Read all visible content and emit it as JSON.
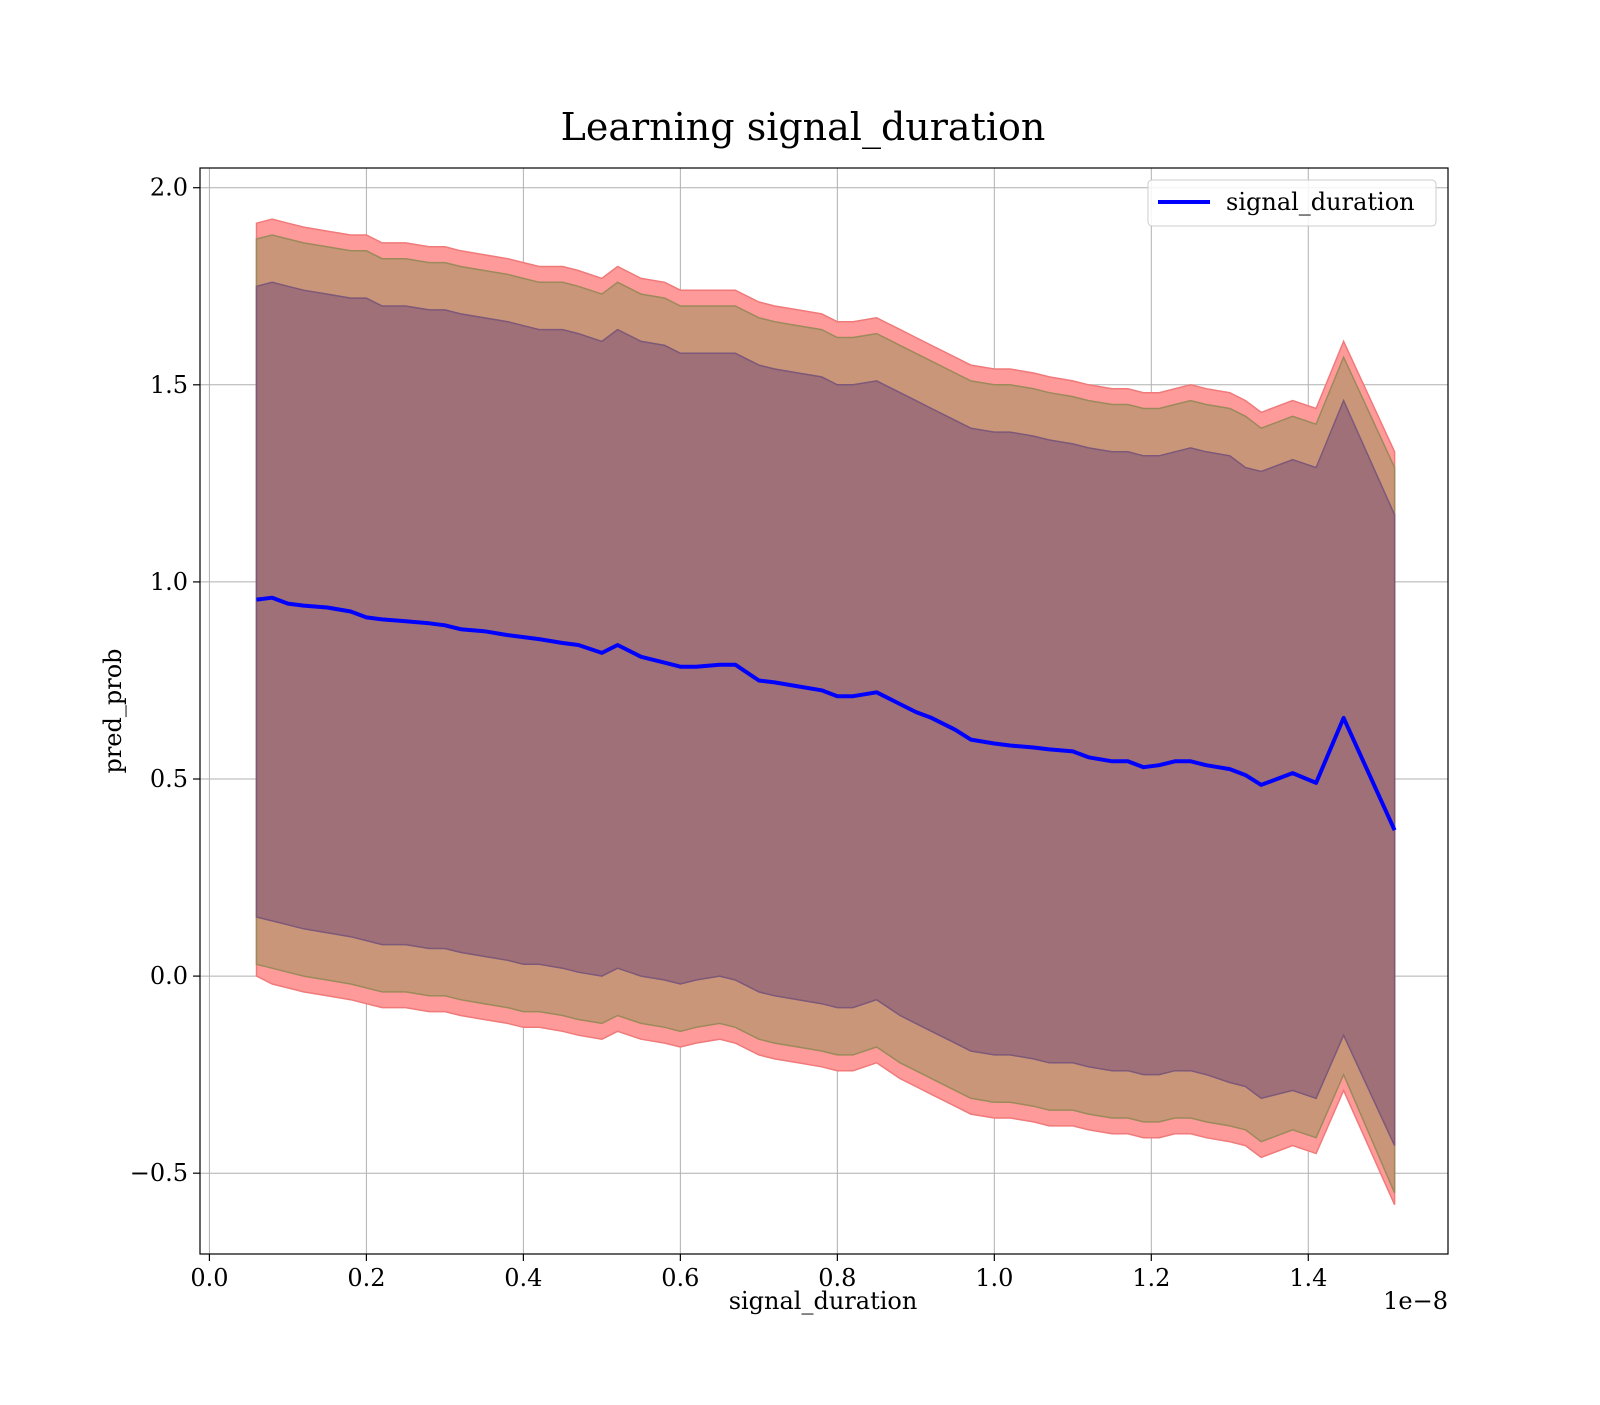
{
  "chart_data": {
    "type": "line",
    "title": "Learning signal_duration",
    "xlabel": "signal_duration",
    "ylabel": "pred_prob",
    "x_offset_label": "1e−8",
    "xlim": [
      -0.012,
      1.578
    ],
    "ylim": [
      -0.705,
      2.05
    ],
    "x_ticks": [
      0.0,
      0.2,
      0.4,
      0.6,
      0.8,
      1.0,
      1.2,
      1.4
    ],
    "x_tick_labels": [
      "0.0",
      "0.2",
      "0.4",
      "0.6",
      "0.8",
      "1.0",
      "1.2",
      "1.4"
    ],
    "y_ticks": [
      -0.5,
      0.0,
      0.5,
      1.0,
      1.5,
      2.0
    ],
    "y_tick_labels": [
      "−0.5",
      "0.0",
      "0.5",
      "1.0",
      "1.5",
      "2.0"
    ],
    "grid": true,
    "legend_position": "upper right",
    "colors": {
      "line": "#0000ff",
      "outer_band": "#ff9a9a",
      "middle_band": "#c9967a",
      "inner_band": "#a07078"
    },
    "series": [
      {
        "name": "signal_duration",
        "x": [
          0.06,
          0.08,
          0.1,
          0.12,
          0.15,
          0.18,
          0.2,
          0.22,
          0.25,
          0.28,
          0.3,
          0.32,
          0.35,
          0.38,
          0.4,
          0.42,
          0.45,
          0.47,
          0.5,
          0.52,
          0.55,
          0.58,
          0.6,
          0.62,
          0.65,
          0.67,
          0.7,
          0.72,
          0.75,
          0.78,
          0.8,
          0.82,
          0.85,
          0.88,
          0.9,
          0.92,
          0.95,
          0.97,
          1.0,
          1.02,
          1.05,
          1.07,
          1.1,
          1.12,
          1.15,
          1.17,
          1.19,
          1.21,
          1.23,
          1.25,
          1.27,
          1.3,
          1.32,
          1.34,
          1.38,
          1.41,
          1.445,
          1.51
        ],
        "y": [
          0.955,
          0.96,
          0.945,
          0.94,
          0.935,
          0.925,
          0.91,
          0.905,
          0.9,
          0.895,
          0.89,
          0.88,
          0.875,
          0.865,
          0.86,
          0.855,
          0.845,
          0.84,
          0.82,
          0.84,
          0.81,
          0.795,
          0.785,
          0.785,
          0.79,
          0.79,
          0.75,
          0.745,
          0.735,
          0.725,
          0.71,
          0.71,
          0.72,
          0.69,
          0.67,
          0.655,
          0.625,
          0.6,
          0.59,
          0.585,
          0.58,
          0.575,
          0.57,
          0.555,
          0.545,
          0.545,
          0.53,
          0.535,
          0.545,
          0.545,
          0.535,
          0.525,
          0.51,
          0.485,
          0.515,
          0.49,
          0.655,
          0.37
        ]
      }
    ],
    "bands": [
      {
        "name": "outer",
        "lower": [
          0.0,
          -0.02,
          -0.03,
          -0.04,
          -0.05,
          -0.06,
          -0.07,
          -0.08,
          -0.08,
          -0.09,
          -0.09,
          -0.1,
          -0.11,
          -0.12,
          -0.13,
          -0.13,
          -0.14,
          -0.15,
          -0.16,
          -0.14,
          -0.16,
          -0.17,
          -0.18,
          -0.17,
          -0.16,
          -0.17,
          -0.2,
          -0.21,
          -0.22,
          -0.23,
          -0.24,
          -0.24,
          -0.22,
          -0.26,
          -0.28,
          -0.3,
          -0.33,
          -0.35,
          -0.36,
          -0.36,
          -0.37,
          -0.38,
          -0.38,
          -0.39,
          -0.4,
          -0.4,
          -0.41,
          -0.41,
          -0.4,
          -0.4,
          -0.41,
          -0.42,
          -0.43,
          -0.46,
          -0.43,
          -0.45,
          -0.29,
          -0.58
        ],
        "upper": [
          1.91,
          1.92,
          1.91,
          1.9,
          1.89,
          1.88,
          1.88,
          1.86,
          1.86,
          1.85,
          1.85,
          1.84,
          1.83,
          1.82,
          1.81,
          1.8,
          1.8,
          1.79,
          1.77,
          1.8,
          1.77,
          1.76,
          1.74,
          1.74,
          1.74,
          1.74,
          1.71,
          1.7,
          1.69,
          1.68,
          1.66,
          1.66,
          1.67,
          1.64,
          1.62,
          1.6,
          1.57,
          1.55,
          1.54,
          1.54,
          1.53,
          1.52,
          1.51,
          1.5,
          1.49,
          1.49,
          1.48,
          1.48,
          1.49,
          1.5,
          1.49,
          1.48,
          1.46,
          1.43,
          1.46,
          1.44,
          1.61,
          1.33
        ]
      },
      {
        "name": "middle",
        "lower": [
          0.03,
          0.02,
          0.01,
          0.0,
          -0.01,
          -0.02,
          -0.03,
          -0.04,
          -0.04,
          -0.05,
          -0.05,
          -0.06,
          -0.07,
          -0.08,
          -0.09,
          -0.09,
          -0.1,
          -0.11,
          -0.12,
          -0.1,
          -0.12,
          -0.13,
          -0.14,
          -0.13,
          -0.12,
          -0.13,
          -0.16,
          -0.17,
          -0.18,
          -0.19,
          -0.2,
          -0.2,
          -0.18,
          -0.22,
          -0.24,
          -0.26,
          -0.29,
          -0.31,
          -0.32,
          -0.32,
          -0.33,
          -0.34,
          -0.34,
          -0.35,
          -0.36,
          -0.36,
          -0.37,
          -0.37,
          -0.36,
          -0.36,
          -0.37,
          -0.38,
          -0.39,
          -0.42,
          -0.39,
          -0.41,
          -0.25,
          -0.55
        ],
        "upper": [
          1.87,
          1.88,
          1.87,
          1.86,
          1.85,
          1.84,
          1.84,
          1.82,
          1.82,
          1.81,
          1.81,
          1.8,
          1.79,
          1.78,
          1.77,
          1.76,
          1.76,
          1.75,
          1.73,
          1.76,
          1.73,
          1.72,
          1.7,
          1.7,
          1.7,
          1.7,
          1.67,
          1.66,
          1.65,
          1.64,
          1.62,
          1.62,
          1.63,
          1.6,
          1.58,
          1.56,
          1.53,
          1.51,
          1.5,
          1.5,
          1.49,
          1.48,
          1.47,
          1.46,
          1.45,
          1.45,
          1.44,
          1.44,
          1.45,
          1.46,
          1.45,
          1.44,
          1.42,
          1.39,
          1.42,
          1.4,
          1.57,
          1.29
        ]
      },
      {
        "name": "inner",
        "lower": [
          0.15,
          0.14,
          0.13,
          0.12,
          0.11,
          0.1,
          0.09,
          0.08,
          0.08,
          0.07,
          0.07,
          0.06,
          0.05,
          0.04,
          0.03,
          0.03,
          0.02,
          0.01,
          0.0,
          0.02,
          0.0,
          -0.01,
          -0.02,
          -0.01,
          0.0,
          -0.01,
          -0.04,
          -0.05,
          -0.06,
          -0.07,
          -0.08,
          -0.08,
          -0.06,
          -0.1,
          -0.12,
          -0.14,
          -0.17,
          -0.19,
          -0.2,
          -0.2,
          -0.21,
          -0.22,
          -0.22,
          -0.23,
          -0.24,
          -0.24,
          -0.25,
          -0.25,
          -0.24,
          -0.24,
          -0.25,
          -0.27,
          -0.28,
          -0.31,
          -0.29,
          -0.31,
          -0.15,
          -0.43
        ],
        "upper": [
          1.75,
          1.76,
          1.75,
          1.74,
          1.73,
          1.72,
          1.72,
          1.7,
          1.7,
          1.69,
          1.69,
          1.68,
          1.67,
          1.66,
          1.65,
          1.64,
          1.64,
          1.63,
          1.61,
          1.64,
          1.61,
          1.6,
          1.58,
          1.58,
          1.58,
          1.58,
          1.55,
          1.54,
          1.53,
          1.52,
          1.5,
          1.5,
          1.51,
          1.48,
          1.46,
          1.44,
          1.41,
          1.39,
          1.38,
          1.38,
          1.37,
          1.36,
          1.35,
          1.34,
          1.33,
          1.33,
          1.32,
          1.32,
          1.33,
          1.34,
          1.33,
          1.32,
          1.29,
          1.28,
          1.31,
          1.29,
          1.46,
          1.17
        ]
      }
    ]
  }
}
